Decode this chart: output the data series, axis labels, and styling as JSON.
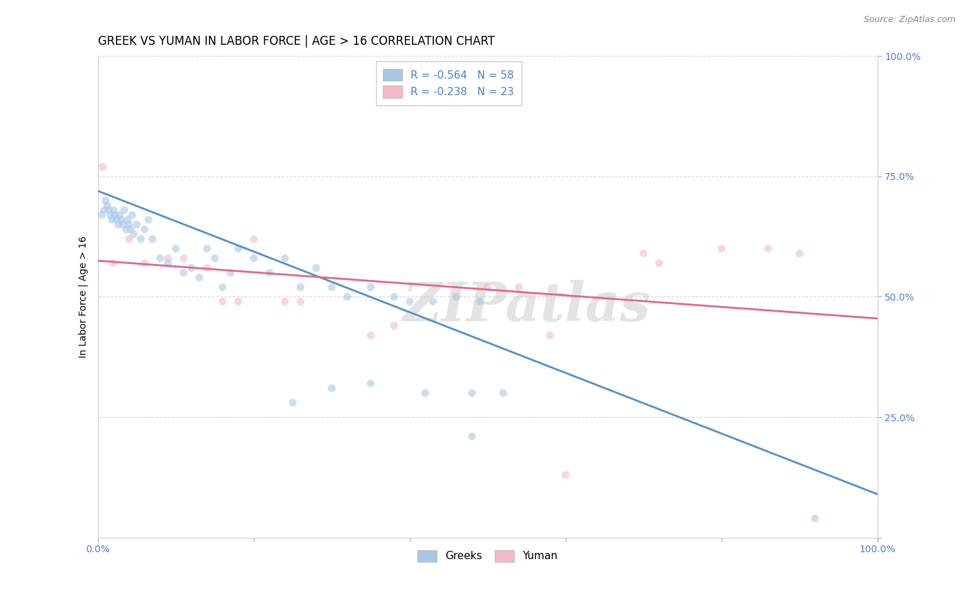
{
  "title": "GREEK VS YUMAN IN LABOR FORCE | AGE > 16 CORRELATION CHART",
  "source": "Source: ZipAtlas.com",
  "ylabel": "In Labor Force | Age > 16",
  "watermark": "ZIPatlas",
  "xlim": [
    0.0,
    1.0
  ],
  "ylim": [
    0.0,
    1.0
  ],
  "xticks": [
    0.0,
    0.2,
    0.4,
    0.6,
    0.8,
    1.0
  ],
  "yticks": [
    0.0,
    0.25,
    0.5,
    0.75,
    1.0
  ],
  "blue_color": "#a8c8e8",
  "pink_color": "#f4b8c8",
  "blue_line_color": "#5090c8",
  "pink_line_color": "#e06888",
  "text_color": "#4a7fc8",
  "legend_blue_label": "R = -0.564   N = 58",
  "legend_pink_label": "R = -0.238   N = 23",
  "legend_greek": "Greeks",
  "legend_yuman": "Yuman",
  "blue_scatter_x": [
    0.005,
    0.008,
    0.01,
    0.012,
    0.014,
    0.016,
    0.018,
    0.02,
    0.022,
    0.024,
    0.026,
    0.028,
    0.03,
    0.032,
    0.034,
    0.036,
    0.038,
    0.04,
    0.042,
    0.044,
    0.046,
    0.05,
    0.055,
    0.06,
    0.065,
    0.07,
    0.08,
    0.09,
    0.1,
    0.11,
    0.12,
    0.13,
    0.14,
    0.15,
    0.16,
    0.17,
    0.18,
    0.2,
    0.22,
    0.24,
    0.26,
    0.28,
    0.3,
    0.32,
    0.35,
    0.38,
    0.4,
    0.43,
    0.46,
    0.49,
    0.35,
    0.25,
    0.42,
    0.3,
    0.48,
    0.52,
    0.48,
    0.92
  ],
  "blue_scatter_y": [
    0.67,
    0.68,
    0.7,
    0.69,
    0.68,
    0.67,
    0.66,
    0.68,
    0.67,
    0.66,
    0.65,
    0.67,
    0.66,
    0.65,
    0.68,
    0.64,
    0.66,
    0.65,
    0.64,
    0.67,
    0.63,
    0.65,
    0.62,
    0.64,
    0.66,
    0.62,
    0.58,
    0.57,
    0.6,
    0.55,
    0.56,
    0.54,
    0.6,
    0.58,
    0.52,
    0.55,
    0.6,
    0.58,
    0.55,
    0.58,
    0.52,
    0.56,
    0.52,
    0.5,
    0.52,
    0.5,
    0.49,
    0.49,
    0.5,
    0.49,
    0.32,
    0.28,
    0.3,
    0.31,
    0.3,
    0.3,
    0.21,
    0.04
  ],
  "pink_scatter_x": [
    0.006,
    0.02,
    0.04,
    0.06,
    0.09,
    0.11,
    0.14,
    0.16,
    0.18,
    0.2,
    0.24,
    0.26,
    0.35,
    0.38,
    0.5,
    0.54,
    0.58,
    0.7,
    0.72,
    0.8,
    0.86,
    0.9,
    0.6
  ],
  "pink_scatter_y": [
    0.77,
    0.57,
    0.62,
    0.57,
    0.58,
    0.58,
    0.56,
    0.49,
    0.49,
    0.62,
    0.49,
    0.49,
    0.42,
    0.44,
    0.52,
    0.52,
    0.42,
    0.59,
    0.57,
    0.6,
    0.6,
    0.59,
    0.13
  ],
  "blue_line_x": [
    0.0,
    1.0
  ],
  "blue_line_y": [
    0.72,
    0.09
  ],
  "pink_line_x": [
    0.0,
    1.0
  ],
  "pink_line_y": [
    0.575,
    0.455
  ],
  "background_color": "#ffffff",
  "grid_color": "#cccccc",
  "title_fontsize": 12,
  "label_fontsize": 10,
  "tick_fontsize": 10,
  "source_fontsize": 9,
  "scatter_size": 65,
  "scatter_alpha": 0.6,
  "line_width": 2.0
}
